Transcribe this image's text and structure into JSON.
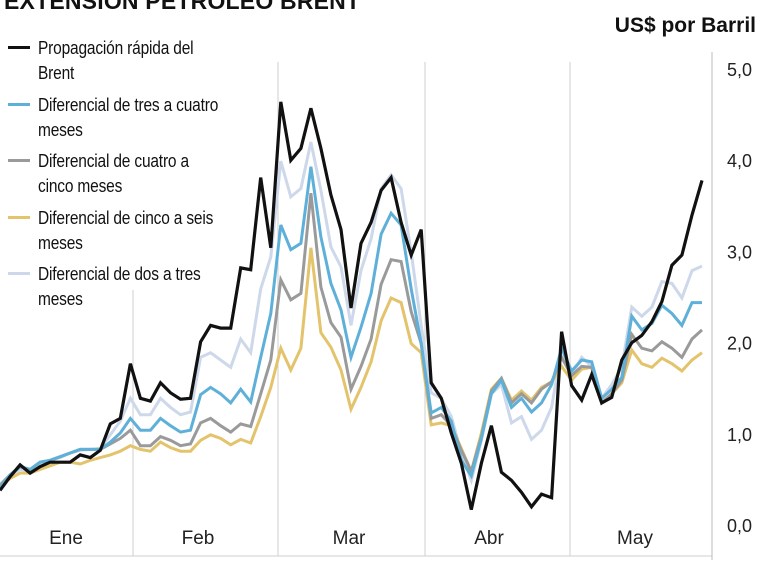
{
  "title": "EXTENSION PETROLEO BRENT",
  "chart_data": {
    "type": "line",
    "title": "EXTENSION PETROLEO BRENT",
    "ylabel": "US$ por Barril",
    "ylim": [
      0,
      5
    ],
    "y_ticks": [
      "0,0",
      "1,0",
      "2,0",
      "3,0",
      "4,0",
      "5,0"
    ],
    "y_axis_side": "right",
    "x_ticks": [
      "Ene",
      "Feb",
      "Mar",
      "Abr",
      "May"
    ],
    "grid": false,
    "legend_position": "top-left",
    "series": [
      {
        "name": "Diferencial de dos a tres meses",
        "color": "#cdd8ea",
        "values": [
          0.4,
          0.55,
          0.62,
          0.6,
          0.68,
          0.72,
          0.75,
          0.8,
          0.83,
          0.84,
          0.85,
          1.0,
          1.15,
          1.4,
          1.22,
          1.22,
          1.4,
          1.3,
          1.22,
          1.25,
          1.85,
          1.9,
          1.82,
          1.74,
          2.05,
          1.9,
          2.6,
          2.95,
          4.0,
          3.61,
          3.7,
          4.21,
          3.68,
          3.06,
          2.84,
          2.2,
          2.8,
          3.15,
          3.7,
          3.85,
          3.7,
          3.0,
          2.2,
          1.46,
          1.4,
          1.2,
          0.8,
          0.5,
          0.94,
          1.45,
          1.55,
          1.13,
          1.2,
          0.95,
          1.05,
          1.3,
          1.95,
          1.65,
          1.85,
          1.75,
          1.4,
          1.55,
          1.74,
          2.4,
          2.3,
          2.4,
          2.68,
          2.66,
          2.5,
          2.8,
          2.85
        ]
      },
      {
        "name": "Diferencial de cinco a seis meses",
        "color": "#e3c36b",
        "values": [
          0.45,
          0.52,
          0.58,
          0.58,
          0.62,
          0.66,
          0.7,
          0.7,
          0.68,
          0.72,
          0.75,
          0.78,
          0.82,
          0.88,
          0.84,
          0.82,
          0.92,
          0.86,
          0.82,
          0.82,
          0.94,
          1.0,
          0.96,
          0.89,
          0.95,
          0.91,
          1.2,
          1.52,
          1.95,
          1.71,
          1.95,
          3.05,
          2.12,
          1.96,
          1.71,
          1.28,
          1.52,
          1.8,
          2.25,
          2.5,
          2.45,
          2.0,
          1.9,
          1.11,
          1.13,
          1.1,
          0.85,
          0.6,
          1.02,
          1.5,
          1.62,
          1.38,
          1.48,
          1.38,
          1.52,
          1.58,
          1.75,
          1.6,
          1.72,
          1.74,
          1.35,
          1.45,
          1.57,
          1.93,
          1.78,
          1.74,
          1.84,
          1.78,
          1.7,
          1.82,
          1.9
        ]
      },
      {
        "name": "Diferencial de cuatro a cinco meses",
        "color": "#9a9a9a",
        "values": [
          0.45,
          0.56,
          0.65,
          0.62,
          0.7,
          0.72,
          0.76,
          0.8,
          0.84,
          0.84,
          0.84,
          0.9,
          0.96,
          1.05,
          0.88,
          0.88,
          0.98,
          0.94,
          0.88,
          0.9,
          1.13,
          1.18,
          1.1,
          1.03,
          1.12,
          1.09,
          1.45,
          1.82,
          2.7,
          2.48,
          2.55,
          3.65,
          2.62,
          2.23,
          2.07,
          1.5,
          1.75,
          2.05,
          2.65,
          2.92,
          2.9,
          2.35,
          2.0,
          1.18,
          1.22,
          1.1,
          0.83,
          0.6,
          0.98,
          1.48,
          1.62,
          1.35,
          1.45,
          1.35,
          1.5,
          1.58,
          1.85,
          1.65,
          1.75,
          1.74,
          1.35,
          1.45,
          1.6,
          2.1,
          1.95,
          1.92,
          2.02,
          1.95,
          1.85,
          2.05,
          2.15
        ]
      },
      {
        "name": "Diferencial de tres a cuatro meses",
        "color": "#5fb0d8",
        "values": [
          0.42,
          0.56,
          0.65,
          0.62,
          0.7,
          0.72,
          0.76,
          0.8,
          0.84,
          0.84,
          0.84,
          0.92,
          1.02,
          1.18,
          1.05,
          1.05,
          1.18,
          1.1,
          1.03,
          1.05,
          1.44,
          1.52,
          1.45,
          1.35,
          1.5,
          1.36,
          1.85,
          2.33,
          3.3,
          3.03,
          3.1,
          3.94,
          3.17,
          2.66,
          2.37,
          1.85,
          2.18,
          2.55,
          3.2,
          3.43,
          3.3,
          2.6,
          2.0,
          1.24,
          1.3,
          1.15,
          0.72,
          0.55,
          0.96,
          1.45,
          1.6,
          1.3,
          1.4,
          1.25,
          1.35,
          1.55,
          1.95,
          1.7,
          1.82,
          1.8,
          1.4,
          1.5,
          1.63,
          2.3,
          2.15,
          2.22,
          2.42,
          2.33,
          2.2,
          2.45,
          2.45
        ]
      },
      {
        "name": "Propagación rápida del Brent",
        "color": "#111111",
        "values": [
          0.39,
          0.54,
          0.67,
          0.58,
          0.65,
          0.7,
          0.7,
          0.7,
          0.78,
          0.75,
          0.83,
          1.12,
          1.18,
          1.78,
          1.4,
          1.37,
          1.57,
          1.46,
          1.39,
          1.4,
          2.02,
          2.2,
          2.17,
          2.17,
          2.83,
          2.81,
          3.82,
          3.05,
          4.65,
          4.01,
          4.14,
          4.58,
          4.14,
          3.63,
          3.25,
          2.39,
          3.1,
          3.33,
          3.68,
          3.82,
          3.33,
          2.97,
          3.25,
          1.57,
          1.4,
          1.02,
          0.69,
          0.18,
          0.69,
          1.1,
          0.59,
          0.5,
          0.37,
          0.21,
          0.35,
          0.31,
          2.13,
          1.54,
          1.38,
          1.66,
          1.35,
          1.41,
          1.82,
          2.01,
          2.09,
          2.24,
          2.46,
          2.86,
          2.97,
          3.41,
          3.79
        ]
      }
    ]
  },
  "legend": [
    {
      "label": "Propagación rápida del Brent",
      "color": "#111111"
    },
    {
      "label": "Diferencial de tres a cuatro meses",
      "color": "#5fb0d8"
    },
    {
      "label": "Diferencial de cuatro a cinco meses",
      "color": "#9a9a9a"
    },
    {
      "label": "Diferencial de cinco a seis meses",
      "color": "#e3c36b"
    },
    {
      "label": "Diferencial de dos a tres meses",
      "color": "#cdd8ea"
    }
  ]
}
